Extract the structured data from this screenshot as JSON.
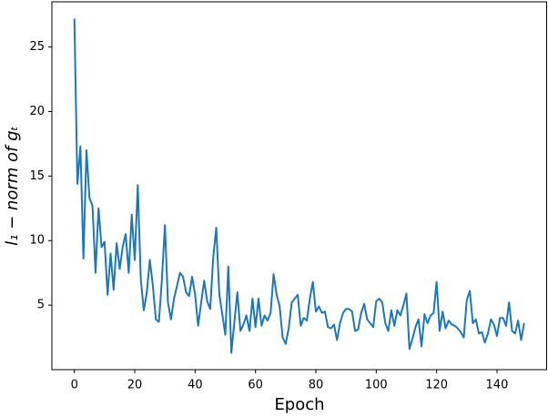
{
  "chart_data": {
    "type": "line",
    "x_label": "Epoch",
    "y_label": "l₁ − norm of gₜ",
    "x": [
      0,
      1,
      2,
      3,
      4,
      5,
      6,
      7,
      8,
      9,
      10,
      11,
      12,
      13,
      14,
      15,
      16,
      17,
      18,
      19,
      20,
      21,
      22,
      23,
      24,
      25,
      26,
      27,
      28,
      29,
      30,
      31,
      32,
      33,
      34,
      35,
      36,
      37,
      38,
      39,
      40,
      41,
      42,
      43,
      44,
      45,
      46,
      47,
      48,
      49,
      50,
      51,
      52,
      53,
      54,
      55,
      56,
      57,
      58,
      59,
      60,
      61,
      62,
      63,
      64,
      65,
      66,
      67,
      68,
      69,
      70,
      71,
      72,
      73,
      74,
      75,
      76,
      77,
      78,
      79,
      80,
      81,
      82,
      83,
      84,
      85,
      86,
      87,
      88,
      89,
      90,
      91,
      92,
      93,
      94,
      95,
      96,
      97,
      98,
      99,
      100,
      101,
      102,
      103,
      104,
      105,
      106,
      107,
      108,
      109,
      110,
      111,
      112,
      113,
      114,
      115,
      116,
      117,
      118,
      119,
      120,
      121,
      122,
      123,
      124,
      125,
      126,
      127,
      128,
      129,
      130,
      131,
      132,
      133,
      134,
      135,
      136,
      137,
      138,
      139,
      140,
      141,
      142,
      143,
      144,
      145,
      146,
      147,
      148,
      149
    ],
    "values": [
      27.2,
      14.4,
      17.3,
      8.6,
      17.0,
      13.3,
      12.7,
      7.5,
      12.5,
      9.5,
      9.9,
      5.8,
      9.0,
      6.2,
      9.8,
      7.8,
      9.5,
      10.5,
      7.5,
      12.0,
      8.5,
      14.3,
      7.0,
      4.6,
      6.0,
      8.5,
      6.5,
      3.9,
      3.7,
      7.0,
      11.2,
      5.2,
      3.9,
      5.5,
      6.5,
      7.5,
      7.2,
      6.0,
      5.7,
      7.2,
      5.8,
      3.4,
      5.2,
      6.9,
      5.3,
      4.7,
      8.7,
      11.0,
      5.9,
      4.3,
      2.7,
      8.0,
      1.3,
      3.7,
      6.0,
      3.0,
      3.5,
      4.2,
      3.0,
      5.5,
      3.3,
      5.5,
      3.4,
      4.2,
      3.8,
      4.4,
      7.4,
      5.8,
      4.9,
      2.5,
      2.0,
      3.2,
      5.2,
      5.5,
      5.8,
      3.4,
      4.0,
      3.8,
      5.5,
      6.8,
      4.5,
      4.9,
      4.4,
      4.5,
      3.3,
      3.2,
      3.5,
      2.3,
      3.6,
      4.4,
      4.7,
      4.7,
      4.5,
      3.0,
      3.1,
      4.4,
      5.1,
      3.9,
      3.6,
      3.3,
      5.3,
      5.5,
      5.2,
      3.6,
      3.0,
      4.6,
      3.4,
      4.6,
      4.2,
      5.0,
      5.9,
      1.6,
      2.4,
      3.3,
      3.9,
      1.8,
      4.3,
      3.6,
      4.2,
      4.4,
      6.8,
      3.0,
      4.5,
      3.2,
      3.8,
      3.5,
      3.4,
      3.2,
      2.9,
      2.5,
      5.4,
      6.1,
      3.6,
      3.9,
      2.8,
      2.9,
      2.1,
      2.8,
      3.9,
      3.5,
      2.6,
      4.0,
      4.0,
      3.4,
      5.2,
      3.0,
      2.8,
      3.8,
      2.3,
      3.6
    ],
    "color": "#1f77b4",
    "xlim": [
      -7.45,
      156.45
    ],
    "xticks": [
      0,
      20,
      40,
      60,
      80,
      100,
      120,
      140
    ],
    "ylim": [
      0,
      28.5
    ],
    "yticks": [
      5,
      10,
      15,
      20,
      25
    ]
  }
}
